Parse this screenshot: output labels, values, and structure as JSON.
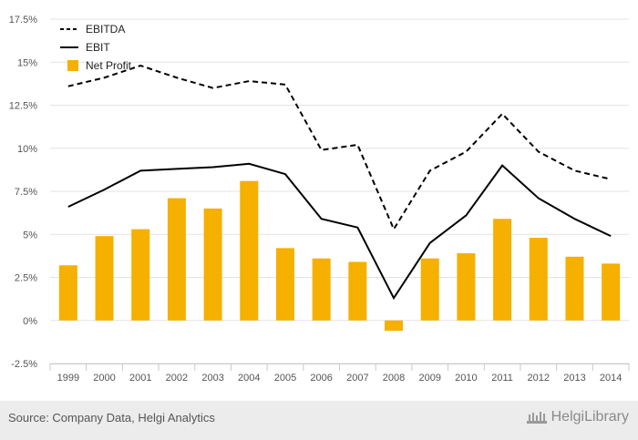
{
  "chart_data": {
    "type": "bar",
    "title": "",
    "xlabel": "",
    "ylabel": "",
    "categories": [
      "1999",
      "2000",
      "2001",
      "2002",
      "2003",
      "2004",
      "2005",
      "2006",
      "2007",
      "2008",
      "2009",
      "2010",
      "2011",
      "2012",
      "2013",
      "2014"
    ],
    "ylim": [
      -2.5,
      17.5
    ],
    "yticks": [
      "-2.5%",
      "0%",
      "2.5%",
      "5%",
      "7.5%",
      "10%",
      "12.5%",
      "15%",
      "17.5%"
    ],
    "grid": true,
    "legend_position": "top-left",
    "series": [
      {
        "name": "EBITDA",
        "type": "line",
        "style": "dashed",
        "color": "#000000",
        "values": [
          13.6,
          14.1,
          14.8,
          14.1,
          13.5,
          13.9,
          13.7,
          9.9,
          10.2,
          5.3,
          8.7,
          9.8,
          12.0,
          9.8,
          8.7,
          8.2
        ]
      },
      {
        "name": "EBIT",
        "type": "line",
        "style": "solid",
        "color": "#000000",
        "values": [
          6.6,
          7.6,
          8.7,
          8.8,
          8.9,
          9.1,
          8.5,
          5.9,
          5.4,
          1.3,
          4.5,
          6.1,
          9.0,
          7.1,
          5.9,
          4.9
        ]
      },
      {
        "name": "Net Profit",
        "type": "bar",
        "color": "#f5b000",
        "values": [
          3.2,
          4.9,
          5.3,
          7.1,
          6.5,
          8.1,
          4.2,
          3.6,
          3.4,
          -0.6,
          3.6,
          3.9,
          5.9,
          4.8,
          3.7,
          3.3
        ]
      }
    ]
  },
  "footer": {
    "source": "Source: Company Data, Helgi Analytics",
    "brand": "HelgiLibrary"
  }
}
